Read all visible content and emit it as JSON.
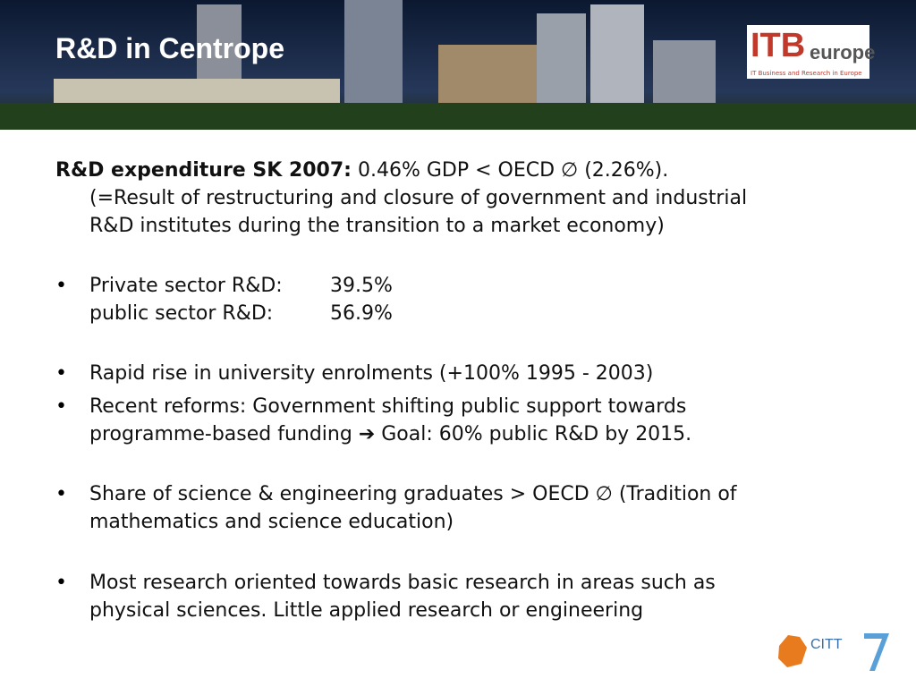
{
  "header": {
    "title": "R&D in Centrope",
    "logo": {
      "main": "ITB",
      "sub": "europe",
      "tagline": "IT Business and Research in Europe"
    }
  },
  "intro": {
    "lead": "R&D expenditure SK 2007:",
    "lines": [
      " 0.46% GDP < OECD ∅ (2.26%).",
      "(=Result of restructuring and closure of government and industrial",
      "R&D institutes during the transition to a market economy)"
    ]
  },
  "shares": [
    [
      "Private sector R&D:",
      "39.5%"
    ],
    [
      "public sector R&D:",
      "56.9%"
    ]
  ],
  "bullets": [
    {
      "lines": [
        "Rapid rise in university enrolments (+100% 1995 - 2003)"
      ]
    },
    {
      "lines": [
        "Recent reforms: Government shifting public support towards",
        "programme-based funding ➔ Goal: 60% public R&D by 2015."
      ]
    },
    {
      "lines": [
        "Share of science & engineering graduates >  OECD ∅ (Tradition of",
        "mathematics and science education)"
      ]
    },
    {
      "lines": [
        "Most research oriented towards basic research in areas such as",
        "physical sciences. Little applied research or engineering"
      ]
    }
  ],
  "footer": {
    "logo": "CITT"
  }
}
